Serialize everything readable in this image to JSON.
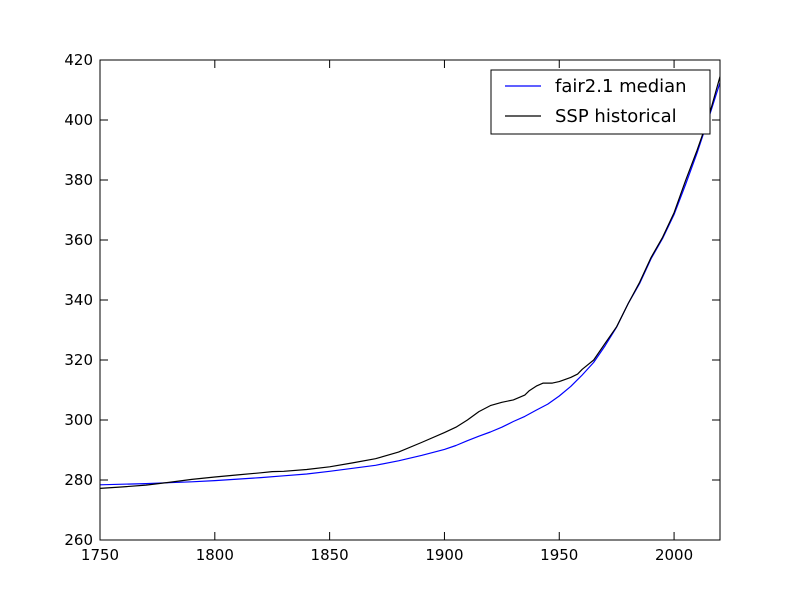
{
  "chart_data": {
    "type": "line",
    "xlim": [
      1750,
      2020
    ],
    "ylim": [
      260,
      420
    ],
    "x_ticks": [
      1750,
      1800,
      1850,
      1900,
      1950,
      2000
    ],
    "y_ticks": [
      260,
      280,
      300,
      320,
      340,
      360,
      380,
      400,
      420
    ],
    "grid": false,
    "legend_position": "top-right",
    "series": [
      {
        "name": "fair2.1 median",
        "color": "#0000ff",
        "points": [
          [
            1750,
            278.4
          ],
          [
            1760,
            278.6
          ],
          [
            1770,
            278.8
          ],
          [
            1780,
            279.1
          ],
          [
            1790,
            279.4
          ],
          [
            1800,
            279.8
          ],
          [
            1810,
            280.3
          ],
          [
            1820,
            280.8
          ],
          [
            1830,
            281.4
          ],
          [
            1840,
            282.0
          ],
          [
            1850,
            282.9
          ],
          [
            1860,
            283.9
          ],
          [
            1870,
            284.9
          ],
          [
            1880,
            286.4
          ],
          [
            1890,
            288.2
          ],
          [
            1900,
            290.2
          ],
          [
            1905,
            291.5
          ],
          [
            1910,
            293.1
          ],
          [
            1915,
            294.6
          ],
          [
            1920,
            296.0
          ],
          [
            1925,
            297.6
          ],
          [
            1930,
            299.5
          ],
          [
            1935,
            301.2
          ],
          [
            1940,
            303.3
          ],
          [
            1945,
            305.3
          ],
          [
            1950,
            308.0
          ],
          [
            1955,
            311.2
          ],
          [
            1960,
            315.0
          ],
          [
            1965,
            319.2
          ],
          [
            1970,
            324.8
          ],
          [
            1975,
            331.0
          ],
          [
            1980,
            338.8
          ],
          [
            1985,
            345.5
          ],
          [
            1990,
            353.8
          ],
          [
            1995,
            360.5
          ],
          [
            2000,
            368.5
          ],
          [
            2005,
            378.5
          ],
          [
            2010,
            389.0
          ],
          [
            2015,
            400.5
          ],
          [
            2020,
            412.5
          ]
        ]
      },
      {
        "name": "SSP historical",
        "color": "#000000",
        "points": [
          [
            1750,
            277.2
          ],
          [
            1760,
            277.7
          ],
          [
            1770,
            278.3
          ],
          [
            1780,
            279.2
          ],
          [
            1790,
            280.2
          ],
          [
            1800,
            281.0
          ],
          [
            1810,
            281.7
          ],
          [
            1820,
            282.4
          ],
          [
            1825,
            282.8
          ],
          [
            1830,
            282.9
          ],
          [
            1840,
            283.5
          ],
          [
            1850,
            284.4
          ],
          [
            1860,
            285.7
          ],
          [
            1870,
            287.1
          ],
          [
            1880,
            289.3
          ],
          [
            1890,
            292.5
          ],
          [
            1900,
            295.8
          ],
          [
            1905,
            297.6
          ],
          [
            1910,
            300.0
          ],
          [
            1915,
            302.8
          ],
          [
            1920,
            304.8
          ],
          [
            1925,
            305.9
          ],
          [
            1930,
            306.7
          ],
          [
            1935,
            308.3
          ],
          [
            1937,
            309.8
          ],
          [
            1940,
            311.3
          ],
          [
            1943,
            312.3
          ],
          [
            1947,
            312.3
          ],
          [
            1950,
            312.8
          ],
          [
            1955,
            314.2
          ],
          [
            1958,
            315.3
          ],
          [
            1960,
            316.9
          ],
          [
            1965,
            320.0
          ],
          [
            1970,
            325.6
          ],
          [
            1975,
            331.1
          ],
          [
            1980,
            338.8
          ],
          [
            1985,
            345.9
          ],
          [
            1990,
            354.2
          ],
          [
            1995,
            360.9
          ],
          [
            2000,
            369.1
          ],
          [
            2005,
            379.8
          ],
          [
            2010,
            389.9
          ],
          [
            2015,
            400.8
          ],
          [
            2020,
            414.5
          ]
        ]
      }
    ]
  }
}
